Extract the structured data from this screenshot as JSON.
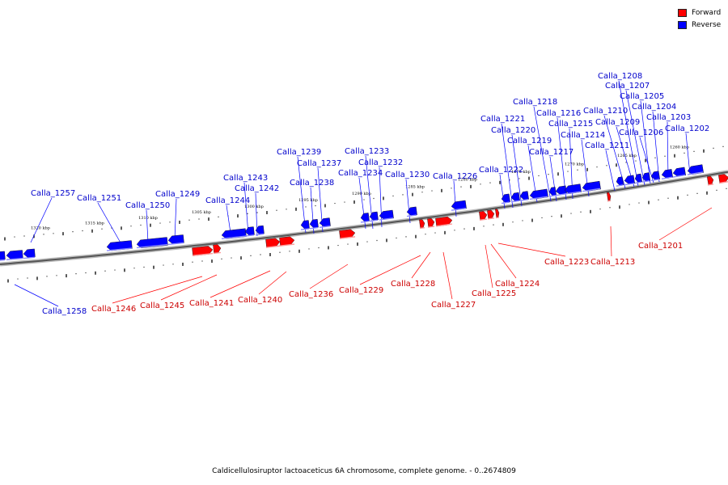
{
  "legend": {
    "forward_label": "Forward",
    "reverse_label": "Reverse",
    "forward_color": "#ff0000",
    "reverse_color": "#0000ff"
  },
  "caption": "Caldicellulosiruptor lactoaceticus 6A chromosome, complete genome. - 0..2674809",
  "ticks": [
    "1320 kbp",
    "1315 kbp",
    "1310 kbp",
    "1305 kbp",
    "1300 kbp",
    "1295 kbp",
    "1290 kbp",
    "1285 kbp",
    "1280 kbp",
    "1275 kbp",
    "1270 kbp",
    "1265 kbp",
    "1260 kbp"
  ],
  "reverse_genes": [
    "Calla_1257",
    "Calla_1251",
    "Calla_1250",
    "Calla_1249",
    "Calla_1244",
    "Calla_1243",
    "Calla_1242",
    "Calla_1239",
    "Calla_1238",
    "Calla_1237",
    "Calla_1234",
    "Calla_1233",
    "Calla_1232",
    "Calla_1230",
    "Calla_1226",
    "Calla_1222",
    "Calla_1221",
    "Calla_1220",
    "Calla_1219",
    "Calla_1218",
    "Calla_1217",
    "Calla_1216",
    "Calla_1215",
    "Calla_1214",
    "Calla_1211",
    "Calla_1210",
    "Calla_1209",
    "Calla_1208",
    "Calla_1207",
    "Calla_1206",
    "Calla_1205",
    "Calla_1204",
    "Calla_1203",
    "Calla_1202",
    "Calla_1258"
  ],
  "forward_genes": [
    "Calla_1246",
    "Calla_1245",
    "Calla_1241",
    "Calla_1240",
    "Calla_1236",
    "Calla_1229",
    "Calla_1228",
    "Calla_1227",
    "Calla_1225",
    "Calla_1224",
    "Calla_1223",
    "Calla_1213",
    "Calla_1201"
  ]
}
